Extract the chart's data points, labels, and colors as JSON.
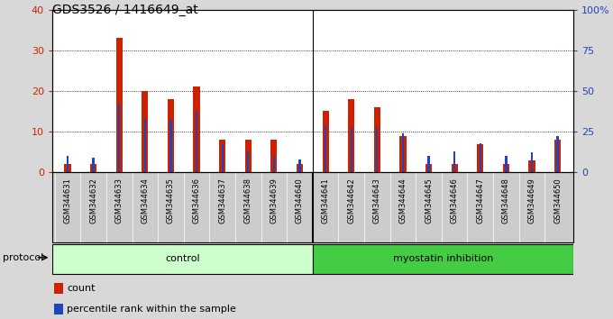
{
  "title": "GDS3526 / 1416649_at",
  "samples": [
    "GSM344631",
    "GSM344632",
    "GSM344633",
    "GSM344634",
    "GSM344635",
    "GSM344636",
    "GSM344637",
    "GSM344638",
    "GSM344639",
    "GSM344640",
    "GSM344641",
    "GSM344642",
    "GSM344643",
    "GSM344644",
    "GSM344645",
    "GSM344646",
    "GSM344647",
    "GSM344648",
    "GSM344649",
    "GSM344650"
  ],
  "count": [
    2,
    2,
    33,
    20,
    18,
    21,
    8,
    8,
    8,
    2,
    15,
    18,
    16,
    9,
    2,
    2,
    7,
    2,
    3,
    8
  ],
  "percentile": [
    10,
    9,
    42,
    33,
    32,
    38,
    17,
    13,
    10,
    8,
    29,
    28,
    27,
    24,
    10,
    13,
    18,
    10,
    12,
    22
  ],
  "control_count": 10,
  "left_ylim": [
    0,
    40
  ],
  "right_ylim": [
    0,
    100
  ],
  "left_yticks": [
    0,
    10,
    20,
    30,
    40
  ],
  "right_yticks": [
    0,
    25,
    50,
    75,
    100
  ],
  "right_yticklabels": [
    "0",
    "25",
    "50",
    "75",
    "100%"
  ],
  "bar_color_red": "#cc2200",
  "bar_color_blue": "#2244bb",
  "bg_color_plot": "#ffffff",
  "bg_color_fig": "#d8d8d8",
  "tick_bg_color": "#cccccc",
  "control_bg_light": "#ccffcc",
  "control_bg_dark": "#55cc55",
  "myostatin_bg": "#44cc44",
  "protocol_label": "protocol",
  "group_labels": [
    "control",
    "myostatin inhibition"
  ],
  "legend_count": "count",
  "legend_percentile": "percentile rank within the sample",
  "title_fontsize": 10,
  "red_bar_width": 0.25,
  "blue_bar_width": 0.08
}
